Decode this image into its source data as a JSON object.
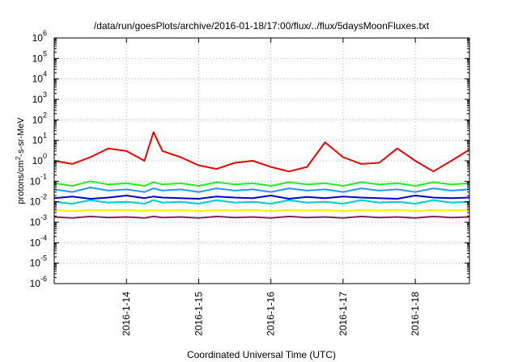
{
  "chart_data": {
    "type": "line",
    "title": "/data/run/goesPlots/archive/2016-01-18/17:00/flux/../flux/5daysMoonFluxes.txt",
    "xlabel": "Coordinated Universal Time (UTC)",
    "ylabel": {
      "base": "protons/cm",
      "sup": "2",
      "rest": "-s-sr-MeV"
    },
    "yscale": "log",
    "ylim": [
      1e-06,
      1000000.0
    ],
    "xlim": [
      "2016-01-13T00:00",
      "2016-01-18T18:00"
    ],
    "grid": true,
    "y_ticks": [
      {
        "value": 1e-06,
        "base": "10",
        "exp": "-6"
      },
      {
        "value": 1e-05,
        "base": "10",
        "exp": "-5"
      },
      {
        "value": 0.0001,
        "base": "10",
        "exp": "-4"
      },
      {
        "value": 0.001,
        "base": "10",
        "exp": "-3"
      },
      {
        "value": 0.01,
        "base": "10",
        "exp": "-2"
      },
      {
        "value": 0.1,
        "base": "10",
        "exp": "-1"
      },
      {
        "value": 1,
        "base": "10",
        "exp": "0"
      },
      {
        "value": 10,
        "base": "10",
        "exp": "1"
      },
      {
        "value": 100,
        "base": "10",
        "exp": "2"
      },
      {
        "value": 1000,
        "base": "10",
        "exp": "3"
      },
      {
        "value": 10000,
        "base": "10",
        "exp": "4"
      },
      {
        "value": 100000,
        "base": "10",
        "exp": "5"
      },
      {
        "value": 1000000,
        "base": "10",
        "exp": "6"
      }
    ],
    "x_ticks": [
      {
        "value": "2016-01-14T00:00",
        "label": "2016-1-14"
      },
      {
        "value": "2016-01-15T00:00",
        "label": "2016-1-15"
      },
      {
        "value": "2016-01-16T00:00",
        "label": "2016-1-16"
      },
      {
        "value": "2016-01-17T00:00",
        "label": "2016-1-17"
      },
      {
        "value": "2016-01-18T00:00",
        "label": "2016-1-18"
      }
    ],
    "x": [
      "2016-01-13T00:00",
      "2016-01-13T06:00",
      "2016-01-13T12:00",
      "2016-01-13T18:00",
      "2016-01-14T00:00",
      "2016-01-14T06:00",
      "2016-01-14T09:00",
      "2016-01-14T12:00",
      "2016-01-14T18:00",
      "2016-01-15T00:00",
      "2016-01-15T06:00",
      "2016-01-15T12:00",
      "2016-01-15T18:00",
      "2016-01-16T00:00",
      "2016-01-16T06:00",
      "2016-01-16T12:00",
      "2016-01-16T18:00",
      "2016-01-17T00:00",
      "2016-01-17T06:00",
      "2016-01-17T12:00",
      "2016-01-17T18:00",
      "2016-01-18T00:00",
      "2016-01-18T06:00",
      "2016-01-18T12:00",
      "2016-01-18T18:00"
    ],
    "series": [
      {
        "color": "#ee0000",
        "width": 2,
        "values": [
          1.0,
          0.7,
          1.5,
          4.0,
          3.0,
          1.0,
          25,
          3.0,
          1.5,
          0.6,
          0.4,
          0.8,
          1.0,
          0.5,
          0.3,
          0.5,
          8.0,
          1.5,
          0.7,
          0.8,
          4.0,
          1.0,
          0.3,
          1.0,
          3.5
        ]
      },
      {
        "color": "#22ee22",
        "width": 2,
        "values": [
          0.08,
          0.06,
          0.1,
          0.07,
          0.08,
          0.06,
          0.09,
          0.07,
          0.08,
          0.06,
          0.09,
          0.07,
          0.08,
          0.06,
          0.09,
          0.07,
          0.08,
          0.06,
          0.09,
          0.07,
          0.08,
          0.06,
          0.09,
          0.07,
          0.08
        ]
      },
      {
        "color": "#2299ff",
        "width": 2,
        "values": [
          0.04,
          0.03,
          0.05,
          0.035,
          0.04,
          0.03,
          0.045,
          0.035,
          0.04,
          0.03,
          0.045,
          0.035,
          0.04,
          0.03,
          0.045,
          0.035,
          0.04,
          0.03,
          0.045,
          0.035,
          0.04,
          0.03,
          0.045,
          0.035,
          0.04
        ]
      },
      {
        "color": "#00cccc",
        "width": 2,
        "values": [
          0.01,
          0.008,
          0.012,
          0.009,
          0.01,
          0.008,
          0.012,
          0.009,
          0.01,
          0.008,
          0.012,
          0.009,
          0.01,
          0.008,
          0.012,
          0.009,
          0.01,
          0.008,
          0.012,
          0.009,
          0.01,
          0.008,
          0.012,
          0.009,
          0.01
        ]
      },
      {
        "color": "#0000cc",
        "width": 2,
        "values": [
          0.015,
          0.018,
          0.014,
          0.016,
          0.02,
          0.015,
          0.018,
          0.016,
          0.015,
          0.014,
          0.018,
          0.016,
          0.015,
          0.02,
          0.014,
          0.017,
          0.015,
          0.018,
          0.016,
          0.015,
          0.014,
          0.02,
          0.016,
          0.015,
          0.016
        ]
      },
      {
        "color": "#ffee00",
        "width": 2,
        "values": [
          0.004,
          0.0035,
          0.004,
          0.0038,
          0.004,
          0.0036,
          0.004,
          0.0037,
          0.004,
          0.0035,
          0.004,
          0.0037,
          0.004,
          0.0035,
          0.004,
          0.0037,
          0.004,
          0.0035,
          0.004,
          0.0037,
          0.004,
          0.0035,
          0.004,
          0.0037,
          0.004
        ]
      },
      {
        "color": "#882255",
        "width": 2,
        "values": [
          0.0018,
          0.0016,
          0.0019,
          0.0017,
          0.0018,
          0.0016,
          0.0019,
          0.0017,
          0.0018,
          0.0016,
          0.0019,
          0.0017,
          0.0018,
          0.0016,
          0.0019,
          0.0017,
          0.0018,
          0.0016,
          0.0019,
          0.0017,
          0.0018,
          0.0016,
          0.0019,
          0.0017,
          0.0018
        ]
      }
    ]
  }
}
